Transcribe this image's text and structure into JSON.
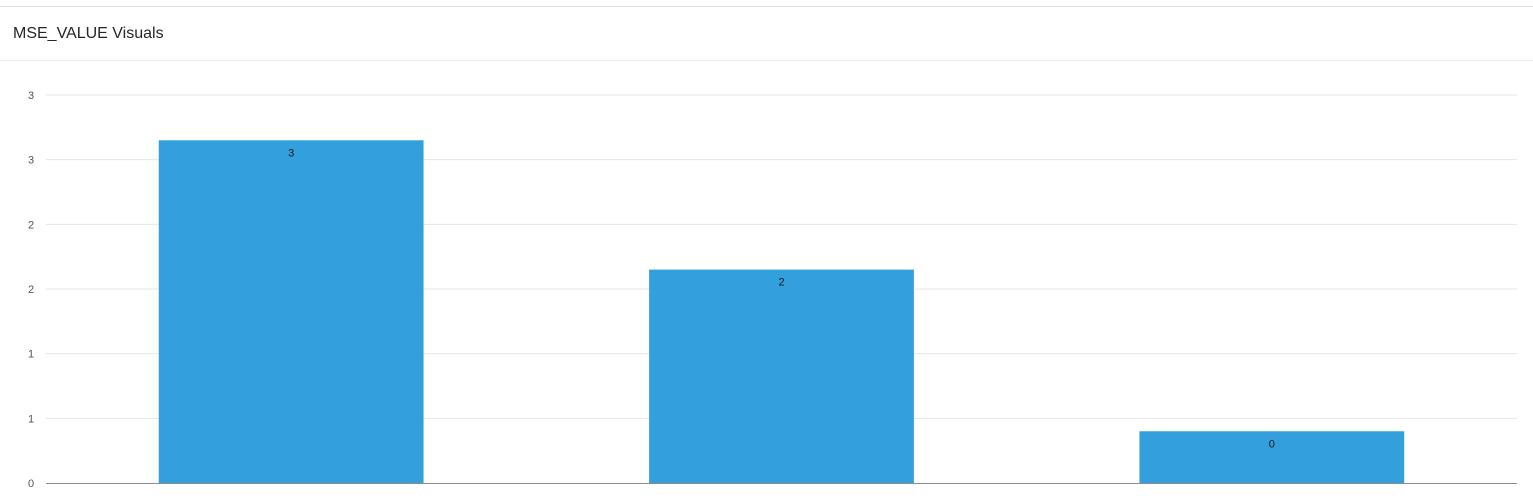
{
  "panel": {
    "title": "MSE_VALUE Visuals"
  },
  "colors": {
    "bar": "#339fdd",
    "grid": "#e6e6e6",
    "axis": "#8c8c8c"
  },
  "chart_data": {
    "type": "bar",
    "title": "MSE_VALUE Visuals",
    "xlabel": "",
    "ylabel": "",
    "categories": [
      "",
      "",
      ""
    ],
    "values": [
      2.65,
      1.65,
      0.4
    ],
    "data_labels": [
      "3",
      "2",
      "0"
    ],
    "ylim": [
      0,
      3
    ],
    "yticks": [
      {
        "value": 0,
        "label": "0"
      },
      {
        "value": 0.5,
        "label": "1"
      },
      {
        "value": 1.0,
        "label": "1"
      },
      {
        "value": 1.5,
        "label": "2"
      },
      {
        "value": 2.0,
        "label": "2"
      },
      {
        "value": 2.5,
        "label": "3"
      },
      {
        "value": 3.0,
        "label": "3"
      }
    ],
    "grid": true,
    "legend": "none"
  }
}
